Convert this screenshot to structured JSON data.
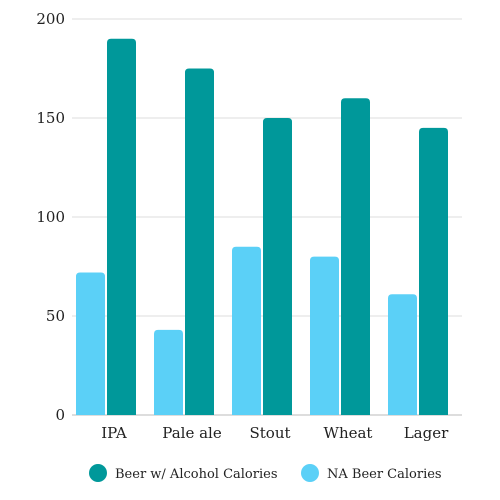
{
  "chart_data": {
    "type": "bar",
    "title": "",
    "xlabel": "",
    "ylabel": "",
    "categories": [
      "IPA",
      "Pale ale",
      "Stout",
      "Wheat",
      "Lager"
    ],
    "series": [
      {
        "name": "NA Beer Calories",
        "color": "#5bd0f7",
        "values": [
          72,
          43,
          85,
          80,
          61
        ]
      },
      {
        "name": "Beer w/ Alcohol Calories",
        "color": "#00989a",
        "values": [
          190,
          175,
          150,
          160,
          145
        ]
      }
    ],
    "ylim": [
      0,
      200
    ],
    "yticks": [
      0,
      50,
      100,
      150,
      200
    ],
    "grid": true,
    "legend": {
      "placement": "bottom-center",
      "order": [
        "Beer w/ Alcohol Calories",
        "NA Beer Calories"
      ]
    }
  }
}
